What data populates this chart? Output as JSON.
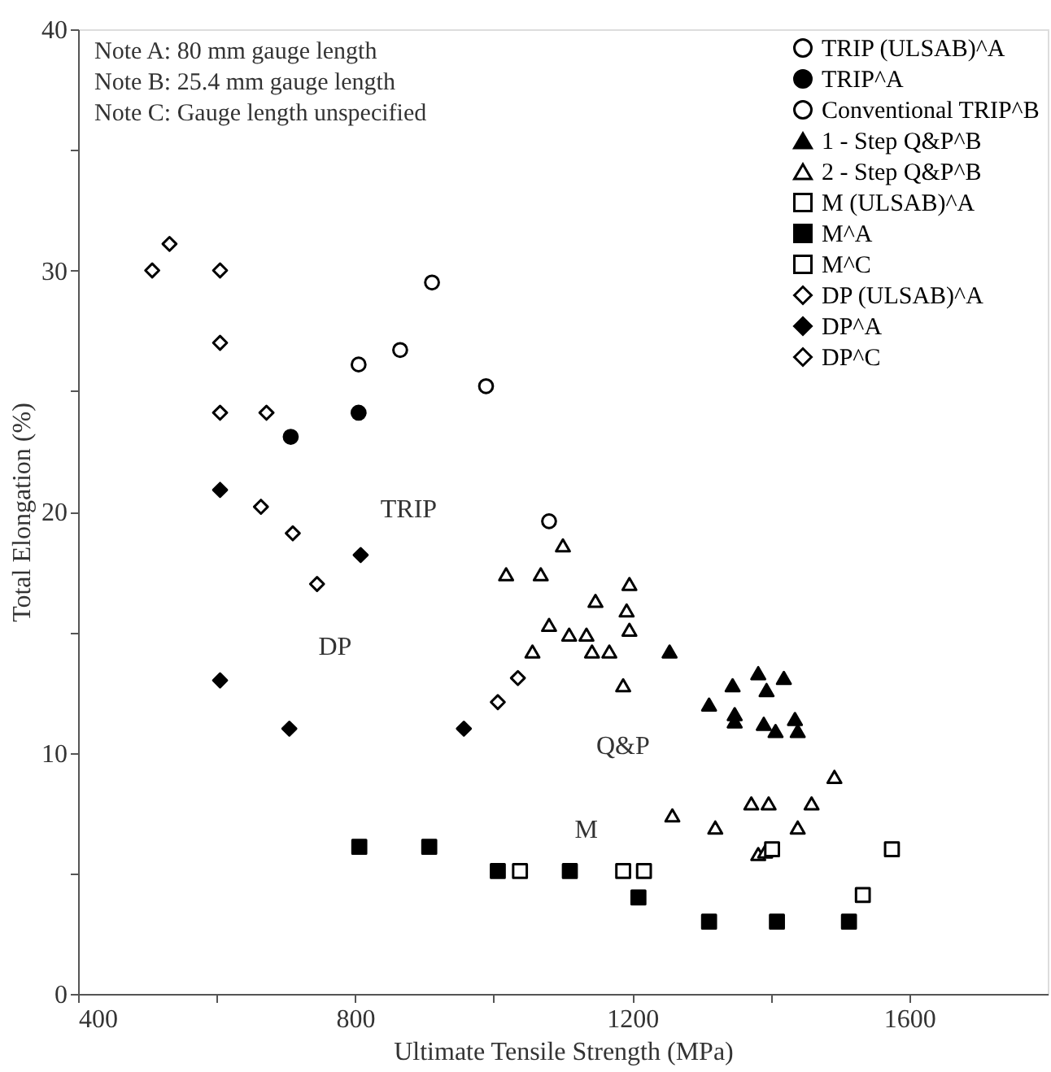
{
  "chart_data": {
    "type": "scatter",
    "xlabel": "Ultimate Tensile Strength (MPa)",
    "ylabel": "Total Elongation (%)",
    "xlim": [
      400,
      1800
    ],
    "ylim": [
      0,
      40
    ],
    "xticks": [
      400,
      {
        "value": 600,
        "label": null
      },
      800,
      {
        "value": 1000,
        "label": null
      },
      1200,
      {
        "value": 1400,
        "label": null
      },
      1600
    ],
    "yticks": [
      0,
      {
        "value": 5,
        "label": null
      },
      10,
      {
        "value": 15,
        "label": null
      },
      20,
      {
        "value": 25,
        "label": null
      },
      30,
      {
        "value": 35,
        "label": null
      },
      40
    ],
    "grid": false,
    "legend": "top right",
    "annotations": [
      "Note A: 80 mm gauge length",
      "Note B: 25.4 mm gauge length",
      "Note C: Gauge length unspecified",
      "TRIP",
      "DP",
      "Q&P",
      "M"
    ],
    "series": [
      {
        "name": "TRIP (ULSAB)^A",
        "color": "#ffffff",
        "marker": "circle",
        "x": [
          805
        ],
        "values": [
          26.1
        ]
      },
      {
        "name": "TRIP^A",
        "color": "#000000",
        "marker": "circle",
        "x": [
          805,
          707
        ],
        "values": [
          24.1,
          23.1
        ]
      },
      {
        "name": "Conventional TRIP^B",
        "color": "#ffffff",
        "marker": "circle",
        "x": [
          865,
          911,
          989,
          1080
        ],
        "values": [
          26.7,
          29.5,
          25.2,
          19.6
        ]
      },
      {
        "name": "1 - Step Q&P^B",
        "color": "#000000",
        "marker": "triangle",
        "x": [
          1254,
          1345,
          1382,
          1419,
          1394,
          1348,
          1311,
          1348,
          1390,
          1435,
          1439,
          1407
        ],
        "values": [
          14.2,
          12.8,
          13.3,
          13.1,
          12.6,
          11.6,
          12.0,
          11.3,
          11.2,
          11.4,
          10.9,
          10.9
        ]
      },
      {
        "name": "2 - Step Q&P^B",
        "color": "#ffffff",
        "marker": "triangle",
        "x": [
          1100,
          1018,
          1068,
          1196,
          1147,
          1192,
          1196,
          1080,
          1109,
          1134,
          1056,
          1142,
          1167,
          1187,
          1258,
          1320,
          1372,
          1397,
          1459,
          1492,
          1439,
          1382,
          1392
        ],
        "values": [
          18.6,
          17.4,
          17.4,
          17.0,
          16.3,
          15.9,
          15.1,
          15.3,
          14.9,
          14.9,
          14.2,
          14.2,
          14.2,
          12.8,
          7.4,
          6.9,
          7.9,
          7.9,
          7.9,
          9.0,
          6.9,
          5.8,
          5.9
        ]
      },
      {
        "name": "M (ULSAB)^A",
        "color": "#ffffff",
        "marker": "square",
        "x": [
          1217,
          1533
        ],
        "values": [
          5.1,
          4.1
        ]
      },
      {
        "name": "M^A",
        "color": "#000000",
        "marker": "square",
        "x": [
          806,
          907,
          1006,
          1110,
          1209,
          1311,
          1409,
          1513
        ],
        "values": [
          6.1,
          6.1,
          5.1,
          5.1,
          4.0,
          3.0,
          3.0,
          3.0
        ]
      },
      {
        "name": "M^C",
        "color": "#ffffff",
        "marker": "square",
        "x": [
          1038,
          1187,
          1402,
          1575
        ],
        "values": [
          5.1,
          5.1,
          6.0,
          6.0
        ]
      },
      {
        "name": "DP (ULSAB)^A",
        "color": "#ffffff",
        "marker": "diamond",
        "x": [
          507,
          605,
          605,
          710,
          1006
        ],
        "values": [
          30.0,
          30.0,
          24.1,
          19.1,
          12.1
        ]
      },
      {
        "name": "DP^A",
        "color": "#000000",
        "marker": "diamond",
        "x": [
          605,
          808,
          605,
          705,
          957
        ],
        "values": [
          20.9,
          18.2,
          13.0,
          11.0,
          11.0
        ]
      },
      {
        "name": "DP^C",
        "color": "#ffffff",
        "marker": "diamond",
        "x": [
          532,
          605,
          672,
          664,
          745,
          1035
        ],
        "values": [
          31.1,
          27.0,
          24.1,
          20.2,
          17.0,
          13.1
        ]
      }
    ]
  }
}
